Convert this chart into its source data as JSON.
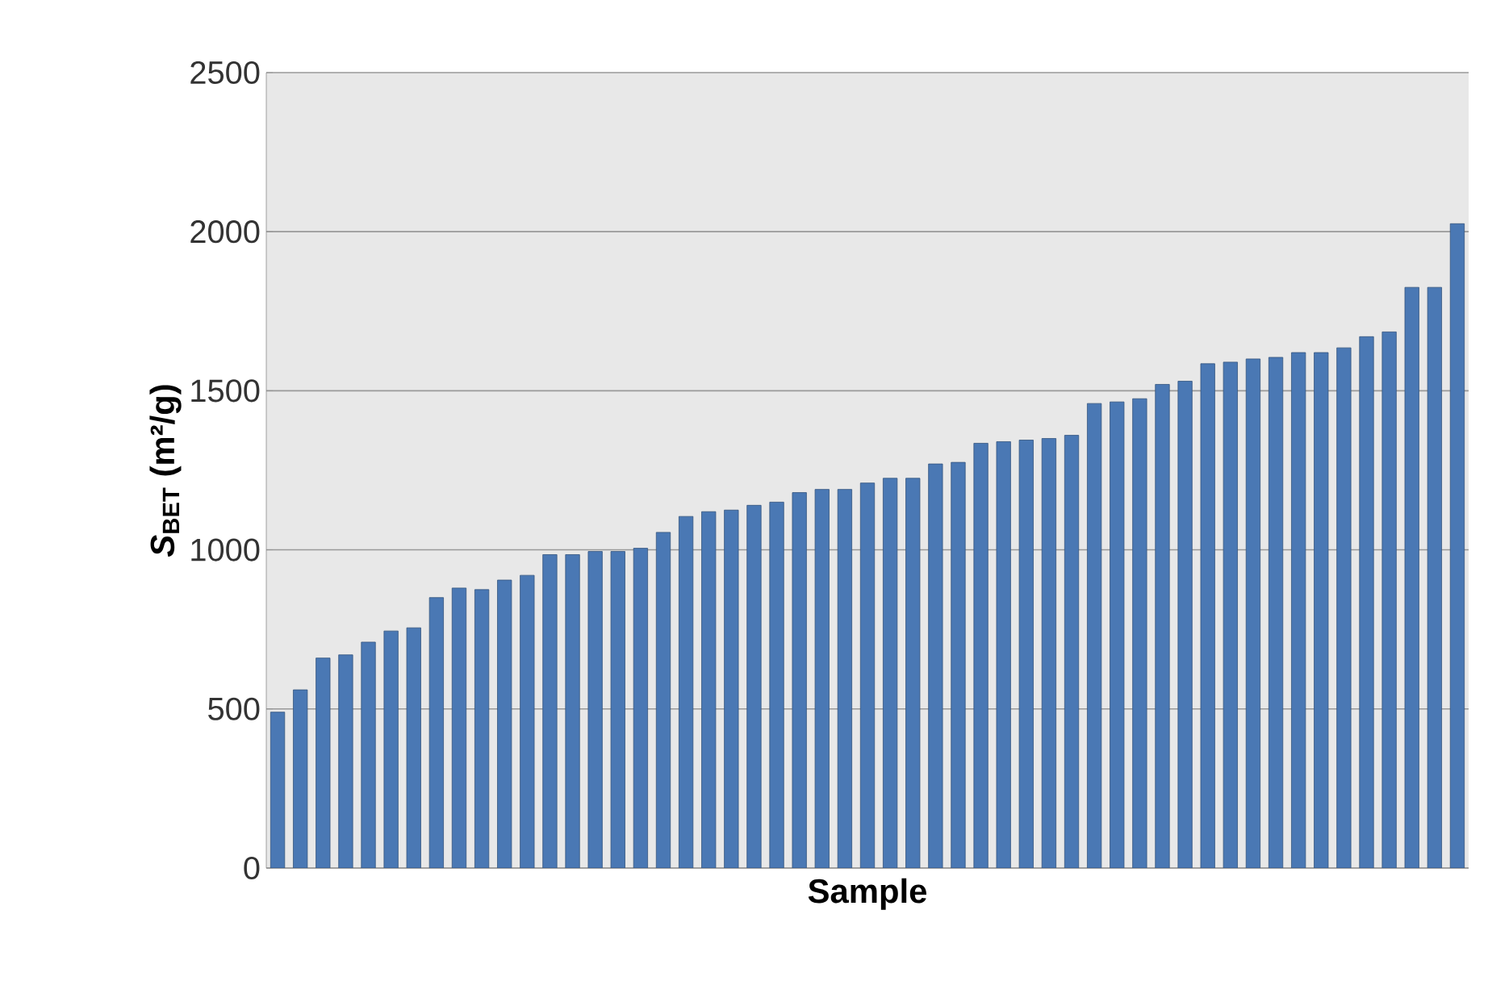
{
  "chart_data": {
    "type": "bar",
    "xlabel": "Sample",
    "ylabel": "*S*$_{BET}$ (m²/g)",
    "categories": [
      null,
      null,
      null,
      null,
      null,
      null,
      null,
      null,
      null,
      null,
      null,
      null,
      null,
      null,
      null,
      null,
      null,
      null,
      null,
      null,
      null,
      null,
      null,
      null,
      null,
      null,
      null,
      null,
      null,
      null,
      null,
      null,
      null,
      null,
      null,
      null,
      null,
      null,
      null,
      null,
      null,
      null,
      null,
      null,
      null,
      null,
      null,
      null,
      null,
      null,
      null,
      null,
      null
    ],
    "values": [
      490,
      560,
      660,
      670,
      710,
      745,
      755,
      850,
      880,
      875,
      905,
      920,
      985,
      985,
      995,
      995,
      1005,
      1055,
      1105,
      1120,
      1125,
      1140,
      1150,
      1180,
      1190,
      1190,
      1210,
      1225,
      1225,
      1270,
      1275,
      1335,
      1340,
      1345,
      1350,
      1360,
      1460,
      1465,
      1475,
      1520,
      1530,
      1585,
      1590,
      1600,
      1605,
      1620,
      1620,
      1635,
      1670,
      1685,
      1825,
      1825,
      2025
    ],
    "color": "#4a78b4",
    "ylim": [
      0,
      2500
    ],
    "yticks": [
      0,
      500,
      1000,
      1500,
      2000,
      2500
    ],
    "grid": "y"
  }
}
